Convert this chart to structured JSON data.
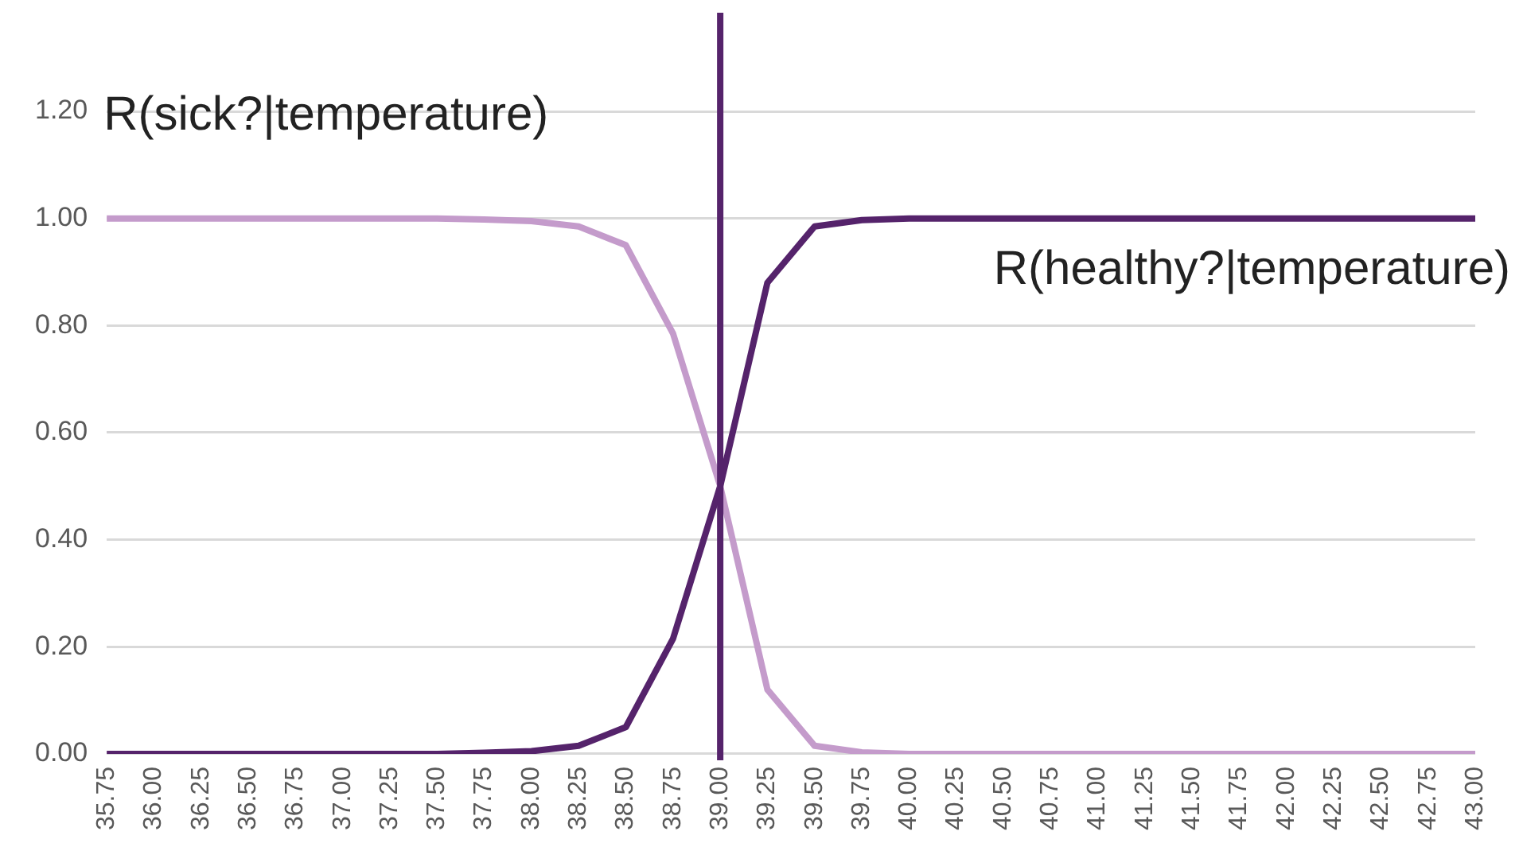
{
  "chart_data": {
    "type": "line",
    "categories": [
      "35.75",
      "36.00",
      "36.25",
      "36.50",
      "36.75",
      "37.00",
      "37.25",
      "37.50",
      "37.75",
      "38.00",
      "38.25",
      "38.50",
      "38.75",
      "39.00",
      "39.25",
      "39.50",
      "39.75",
      "40.00",
      "40.25",
      "40.50",
      "40.75",
      "41.00",
      "41.25",
      "41.50",
      "41.75",
      "42.00",
      "42.25",
      "42.50",
      "42.75",
      "43.00"
    ],
    "series": [
      {
        "name": "R(sick?|temperature)",
        "color": "#c49bcb",
        "values": [
          1,
          1,
          1,
          1,
          1,
          1,
          1,
          1,
          0.998,
          0.995,
          0.985,
          0.95,
          0.785,
          0.5,
          0.12,
          0.015,
          0.003,
          0,
          0,
          0,
          0,
          0,
          0,
          0,
          0,
          0,
          0,
          0,
          0,
          0
        ]
      },
      {
        "name": "R(healthy?|temperature)",
        "color": "#55236b",
        "values": [
          0,
          0,
          0,
          0,
          0,
          0,
          0,
          0,
          0.002,
          0.005,
          0.015,
          0.05,
          0.215,
          0.5,
          0.88,
          0.985,
          0.997,
          1,
          1,
          1,
          1,
          1,
          1,
          1,
          1,
          1,
          1,
          1,
          1,
          1
        ]
      }
    ],
    "ylim": [
      0,
      1.2
    ],
    "yticks": [
      {
        "value": 0,
        "label": "0.00"
      },
      {
        "value": 0.2,
        "label": "0.20"
      },
      {
        "value": 0.4,
        "label": "0.40"
      },
      {
        "value": 0.6,
        "label": "0.60"
      },
      {
        "value": 0.8,
        "label": "0.80"
      },
      {
        "value": 1,
        "label": "1.00"
      },
      {
        "value": 1.2,
        "label": "1.20"
      }
    ],
    "ref_lines": [
      {
        "axis": "x",
        "value": "39.00",
        "color": "#55236b"
      }
    ],
    "grid": "y",
    "legend": false,
    "marker": "none",
    "line_style": "solid"
  }
}
